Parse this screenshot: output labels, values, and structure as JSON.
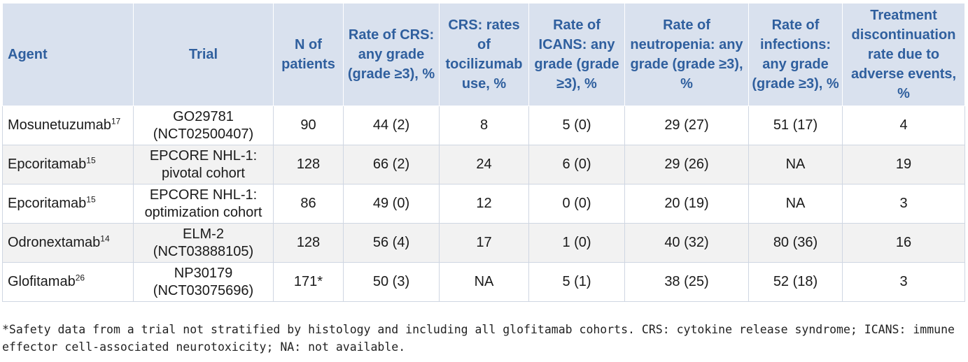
{
  "headers": [
    "Agent",
    "Trial",
    "N of patients",
    "Rate of CRS: any grade (grade ≥3), %",
    "CRS: rates of tocilizumab use, %",
    "Rate of ICANS: any grade (grade ≥3), %",
    "Rate of neutropenia: any grade (grade ≥3), %",
    "Rate of infections: any grade (grade ≥3), %",
    "Treatment discontinuation rate due to adverse events, %"
  ],
  "rows": [
    {
      "agent": "Mosunetuzumab",
      "ref": "17",
      "trial_line1": "GO29781",
      "trial_line2": "(NCT02500407)",
      "n": "90",
      "crs": "44 (2)",
      "toci": "8",
      "icans": "5 (0)",
      "neut": "29 (27)",
      "inf": "51 (17)",
      "disc": "4"
    },
    {
      "agent": "Epcoritamab",
      "ref": "15",
      "trial_line1": "EPCORE NHL-1:",
      "trial_line2": "pivotal cohort",
      "n": "128",
      "crs": "66 (2)",
      "toci": "24",
      "icans": "6 (0)",
      "neut": "29 (26)",
      "inf": "NA",
      "disc": "19"
    },
    {
      "agent": "Epcoritamab",
      "ref": "15",
      "trial_line1": "EPCORE NHL-1:",
      "trial_line2": "optimization cohort",
      "n": "86",
      "crs": "49 (0)",
      "toci": "12",
      "icans": "0 (0)",
      "neut": "20 (19)",
      "inf": "NA",
      "disc": "3"
    },
    {
      "agent": "Odronextamab",
      "ref": "14",
      "trial_line1": "ELM-2",
      "trial_line2": "(NCT03888105)",
      "n": "128",
      "crs": "56 (4)",
      "toci": "17",
      "icans": "1 (0)",
      "neut": "40 (32)",
      "inf": "80 (36)",
      "disc": "16"
    },
    {
      "agent": "Glofitamab",
      "ref": "26",
      "trial_line1": "NP30179",
      "trial_line2": "(NCT03075696)",
      "n": "171*",
      "crs": "50 (3)",
      "toci": "NA",
      "icans": "5 (1)",
      "neut": "38 (25)",
      "inf": "52 (18)",
      "disc": "3"
    }
  ],
  "footnote": "*Safety data from a trial not stratified by histology and including all glofitamab cohorts. CRS: cytokine release syndrome; ICANS: immune effector cell-associated neurotoxicity; NA: not available."
}
